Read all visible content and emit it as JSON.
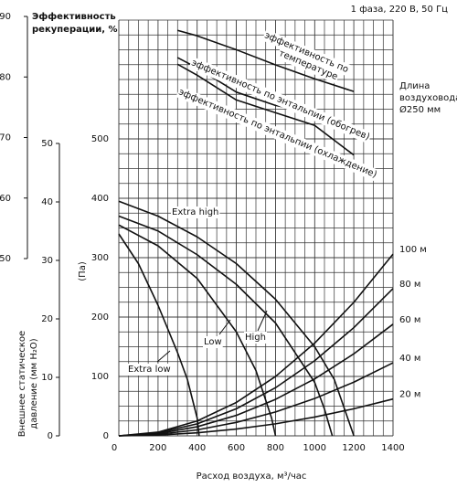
{
  "header": "1 фаза, 220 В, 50 Гц",
  "chart_data": {
    "type": "line",
    "xlabel": "Расход воздуха, м³/час",
    "xlim": [
      0,
      1400
    ],
    "xticks": [
      0,
      200,
      400,
      600,
      800,
      1000,
      1200,
      1400
    ],
    "ylabel": "(Па)",
    "ylim": [
      0,
      700
    ],
    "yticks": [
      0,
      100,
      200,
      300,
      400,
      500
    ],
    "grid": true,
    "color": "#111111",
    "efficiency_axis": {
      "title": [
        "Эффективность",
        "рекуперации, %"
      ],
      "lim": [
        50,
        90
      ],
      "ticks": [
        50,
        60,
        70,
        80,
        90
      ]
    },
    "mmh2o_axis": {
      "title": [
        "Внешнее статическое",
        "давление (мм H₂O)"
      ],
      "lim": [
        0,
        50
      ],
      "ticks": [
        0,
        10,
        20,
        30,
        40,
        50
      ]
    },
    "series": [
      {
        "name": "Extra high",
        "x": [
          0,
          200,
          400,
          600,
          800,
          1000,
          1100,
          1200
        ],
        "values": [
          395,
          370,
          335,
          290,
          230,
          150,
          95,
          0
        ]
      },
      {
        "name": "High",
        "x": [
          0,
          200,
          400,
          600,
          800,
          1000,
          1050,
          1090
        ],
        "values": [
          370,
          345,
          305,
          255,
          190,
          90,
          45,
          0
        ]
      },
      {
        "name": "Low",
        "x": [
          0,
          200,
          400,
          600,
          700,
          780,
          800
        ],
        "values": [
          355,
          320,
          265,
          175,
          110,
          30,
          0
        ]
      },
      {
        "name": "Extra low",
        "x": [
          0,
          100,
          200,
          300,
          350,
          400,
          410
        ],
        "values": [
          340,
          290,
          220,
          140,
          95,
          30,
          0
        ]
      }
    ],
    "duct_curves": {
      "title": [
        "Длина",
        "воздуховода",
        "Ø250 мм"
      ],
      "series": [
        {
          "name": "20 м",
          "x": [
            0,
            200,
            400,
            600,
            800,
            1000,
            1200,
            1400
          ],
          "values": [
            0,
            1.3,
            5.1,
            11.4,
            20.2,
            31.6,
            45.6,
            62
          ]
        },
        {
          "name": "40 м",
          "x": [
            0,
            200,
            400,
            600,
            800,
            1000,
            1200,
            1400
          ],
          "values": [
            0,
            2.5,
            10,
            22.6,
            40.2,
            62.8,
            90.4,
            123
          ]
        },
        {
          "name": "60 м",
          "x": [
            0,
            200,
            400,
            600,
            800,
            1000,
            1200,
            1400
          ],
          "values": [
            0,
            3.8,
            15.3,
            34.5,
            61.4,
            95.9,
            138.1,
            188
          ]
        },
        {
          "name": "80 м",
          "x": [
            0,
            200,
            400,
            600,
            800,
            1000,
            1200,
            1400
          ],
          "values": [
            0,
            5.1,
            20.2,
            45.6,
            81,
            126.5,
            182.2,
            248
          ]
        },
        {
          "name": "100 м",
          "x": [
            0,
            200,
            400,
            600,
            800,
            1000,
            1200,
            1400
          ],
          "values": [
            0,
            6.2,
            25,
            56.2,
            99.9,
            156.1,
            224.8,
            306
          ]
        }
      ]
    },
    "efficiency_curves": [
      {
        "name": [
          "эффективность по",
          "температуре"
        ],
        "x": [
          300,
          400,
          600,
          800,
          1000,
          1200
        ],
        "values": [
          87.7,
          86.8,
          84.5,
          82,
          79.7,
          77.6
        ]
      },
      {
        "name": [
          "эффективность по энтальпии (обогрев)"
        ],
        "x": [
          300,
          400,
          600,
          800,
          1000,
          1200
        ],
        "values": [
          83.2,
          81.5,
          77.5,
          75.3,
          74,
          70.5
        ]
      },
      {
        "name": [
          "эффективность по энтальпии (охлаждение)"
        ],
        "x": [
          300,
          400,
          600,
          800,
          1000,
          1200
        ],
        "values": [
          82.1,
          80.3,
          76.2,
          74.1,
          72,
          67.1
        ]
      }
    ]
  }
}
